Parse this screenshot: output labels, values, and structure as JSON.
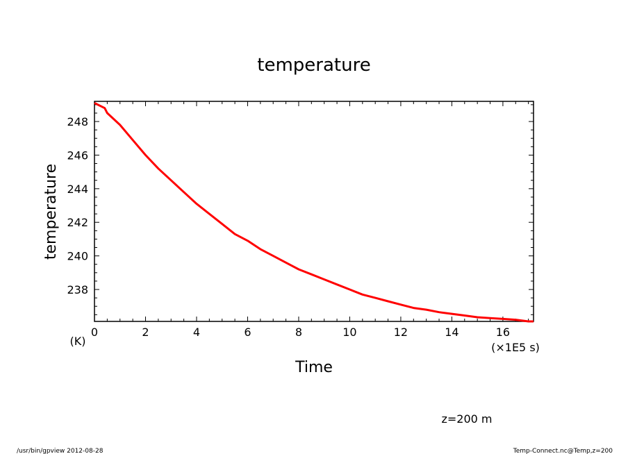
{
  "chart_data": {
    "type": "line",
    "title": "temperature",
    "xlabel": "Time",
    "ylabel": "temperature",
    "yunit": "(K)",
    "xunit": "(×1E5 s)",
    "xlim": [
      0,
      17.2
    ],
    "ylim": [
      236.1,
      249.2
    ],
    "xticks": [
      0,
      2,
      4,
      6,
      8,
      10,
      12,
      14,
      16
    ],
    "yticks": [
      238,
      240,
      242,
      244,
      246,
      248
    ],
    "grid": false,
    "series": [
      {
        "color": "#ff0000",
        "x": [
          0,
          0.4,
          0.5,
          1,
          1.5,
          2,
          2.5,
          3,
          3.5,
          4,
          4.5,
          5,
          5.5,
          6,
          6.5,
          7,
          7.5,
          8,
          8.5,
          9,
          9.5,
          10,
          10.5,
          11,
          11.5,
          12,
          12.5,
          13,
          13.5,
          14,
          14.5,
          15,
          15.5,
          16,
          16.5,
          17,
          17.2
        ],
        "y": [
          249.1,
          248.8,
          248.5,
          247.8,
          246.9,
          246.0,
          245.2,
          244.5,
          243.8,
          243.1,
          242.5,
          241.9,
          241.3,
          240.9,
          240.4,
          240.0,
          239.6,
          239.2,
          238.9,
          238.6,
          238.3,
          238.0,
          237.7,
          237.5,
          237.3,
          237.1,
          236.9,
          236.8,
          236.65,
          236.55,
          236.45,
          236.35,
          236.3,
          236.25,
          236.2,
          236.1,
          236.1
        ]
      }
    ]
  },
  "annotations": {
    "z_level": "z=200 m",
    "footer_left": "/usr/bin/gpview   2012-08-28",
    "footer_right": "Temp-Connect.nc@Temp,z=200"
  }
}
